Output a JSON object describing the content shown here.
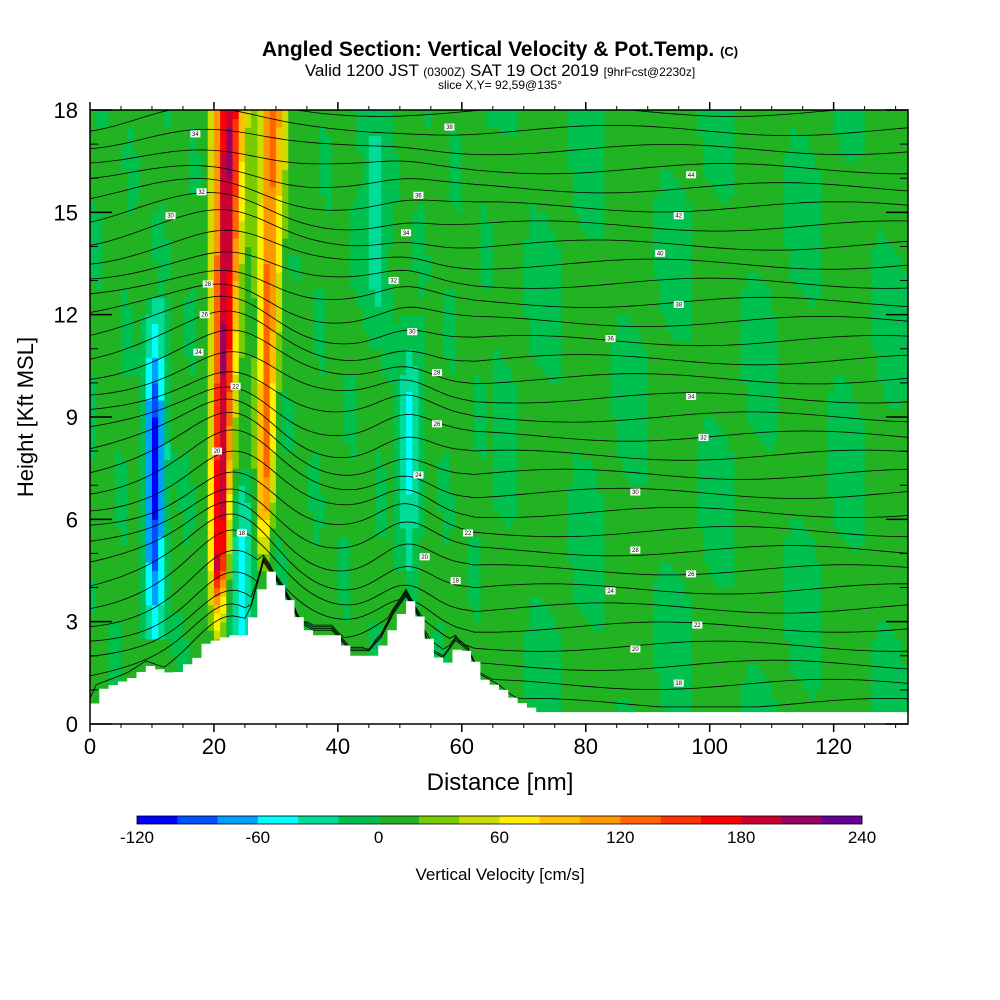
{
  "title": {
    "main": "Angled Section: Vertical Velocity & Pot.Temp.",
    "main_suffix": "(C)",
    "valid_prefix": "Valid 1200 JST",
    "valid_zulu": "(0300Z)",
    "valid_date": "SAT 19 Oct 2019",
    "valid_fcst": "[9hrFcst@2230z]",
    "slice": "slice X,Y= 92,59@135°"
  },
  "chart_data": {
    "type": "heatmap",
    "xlabel": "Distance [nm]",
    "ylabel": "Height [Kft MSL]",
    "xlim": [
      0,
      132
    ],
    "ylim": [
      0,
      18
    ],
    "x_ticks": [
      0,
      20,
      40,
      60,
      80,
      100,
      120
    ],
    "y_ticks": [
      0,
      3,
      6,
      9,
      12,
      15,
      18
    ],
    "terrain_kft": [
      [
        0,
        0.6
      ],
      [
        1,
        1.0
      ],
      [
        6,
        1.35
      ],
      [
        9,
        1.7
      ],
      [
        13,
        1.45
      ],
      [
        15,
        1.75
      ],
      [
        17,
        2.0
      ],
      [
        18,
        2.35
      ],
      [
        22,
        2.6
      ],
      [
        24,
        2.6
      ],
      [
        26,
        3.3
      ],
      [
        28,
        4.6
      ],
      [
        31,
        3.8
      ],
      [
        34,
        2.8
      ],
      [
        36,
        2.6
      ],
      [
        39,
        2.6
      ],
      [
        42,
        2.0
      ],
      [
        45,
        2.0
      ],
      [
        47,
        2.4
      ],
      [
        49,
        3.1
      ],
      [
        51,
        3.6
      ],
      [
        53,
        3.0
      ],
      [
        55,
        2.0
      ],
      [
        57,
        1.8
      ],
      [
        59,
        2.3
      ],
      [
        61,
        2.0
      ],
      [
        63,
        1.3
      ],
      [
        66,
        1.0
      ],
      [
        68,
        0.7
      ],
      [
        72,
        0.35
      ],
      [
        80,
        0.35
      ],
      [
        132,
        0.35
      ]
    ],
    "updrafts": [
      {
        "x": 21.5,
        "peak_cms": 200,
        "base_kft": 2.6,
        "top_kft": 18
      },
      {
        "x": 28.5,
        "peak_cms": 120,
        "base_kft": 4.6,
        "top_kft": 18
      }
    ],
    "downdrafts": [
      {
        "x": 10.5,
        "min_cms": -110,
        "base_kft": 3.5,
        "top_kft": 11
      },
      {
        "x": 24.5,
        "min_cms": -60,
        "base_kft": 2.6,
        "top_kft": 6
      },
      {
        "x": 51.5,
        "min_cms": -50,
        "base_kft": 5.5,
        "top_kft": 10.5
      },
      {
        "x": 46,
        "min_cms": -35,
        "base_kft": 12,
        "top_kft": 18
      }
    ],
    "isentrope_labels": [
      {
        "x": 17,
        "y": 17.3,
        "text": "34"
      },
      {
        "x": 18,
        "y": 15.6,
        "text": "32"
      },
      {
        "x": 13,
        "y": 14.9,
        "text": "30"
      },
      {
        "x": 19,
        "y": 12.9,
        "text": "28"
      },
      {
        "x": 18.5,
        "y": 12.0,
        "text": "26"
      },
      {
        "x": 17.5,
        "y": 10.9,
        "text": "24"
      },
      {
        "x": 23.5,
        "y": 9.9,
        "text": "22"
      },
      {
        "x": 20.5,
        "y": 8.0,
        "text": "20"
      },
      {
        "x": 24.5,
        "y": 5.6,
        "text": "18"
      },
      {
        "x": 58,
        "y": 17.5,
        "text": "38"
      },
      {
        "x": 53,
        "y": 15.5,
        "text": "36"
      },
      {
        "x": 51,
        "y": 14.4,
        "text": "34"
      },
      {
        "x": 49,
        "y": 13.0,
        "text": "32"
      },
      {
        "x": 52,
        "y": 11.5,
        "text": "30"
      },
      {
        "x": 56,
        "y": 10.3,
        "text": "28"
      },
      {
        "x": 56,
        "y": 8.8,
        "text": "26"
      },
      {
        "x": 53,
        "y": 7.3,
        "text": "24"
      },
      {
        "x": 61,
        "y": 5.6,
        "text": "22"
      },
      {
        "x": 54,
        "y": 4.9,
        "text": "20"
      },
      {
        "x": 59,
        "y": 4.2,
        "text": "18"
      },
      {
        "x": 97,
        "y": 16.1,
        "text": "44"
      },
      {
        "x": 95,
        "y": 14.9,
        "text": "42"
      },
      {
        "x": 92,
        "y": 13.8,
        "text": "40"
      },
      {
        "x": 95,
        "y": 12.3,
        "text": "38"
      },
      {
        "x": 84,
        "y": 11.3,
        "text": "36"
      },
      {
        "x": 97,
        "y": 9.6,
        "text": "34"
      },
      {
        "x": 99,
        "y": 8.4,
        "text": "32"
      },
      {
        "x": 88,
        "y": 6.8,
        "text": "30"
      },
      {
        "x": 88,
        "y": 5.1,
        "text": "28"
      },
      {
        "x": 97,
        "y": 4.4,
        "text": "26"
      },
      {
        "x": 84,
        "y": 3.9,
        "text": "24"
      },
      {
        "x": 98,
        "y": 2.9,
        "text": "22"
      },
      {
        "x": 88,
        "y": 2.2,
        "text": "20"
      },
      {
        "x": 95,
        "y": 1.2,
        "text": "18"
      }
    ],
    "colorbar": {
      "label": "Vertical Velocity [cm/s]",
      "min": -120,
      "max": 240,
      "step": 20,
      "tick_labels": [
        "-120",
        "-60",
        "0",
        "60",
        "120",
        "180",
        "240"
      ],
      "colors": [
        "#0000ff",
        "#0050ff",
        "#00a0ff",
        "#00ffff",
        "#00dd99",
        "#00c050",
        "#22b322",
        "#77cc00",
        "#ccdd00",
        "#ffee00",
        "#ffc000",
        "#ff9900",
        "#ff6600",
        "#ff3300",
        "#ff0000",
        "#cc0033",
        "#990066",
        "#660099"
      ]
    }
  }
}
